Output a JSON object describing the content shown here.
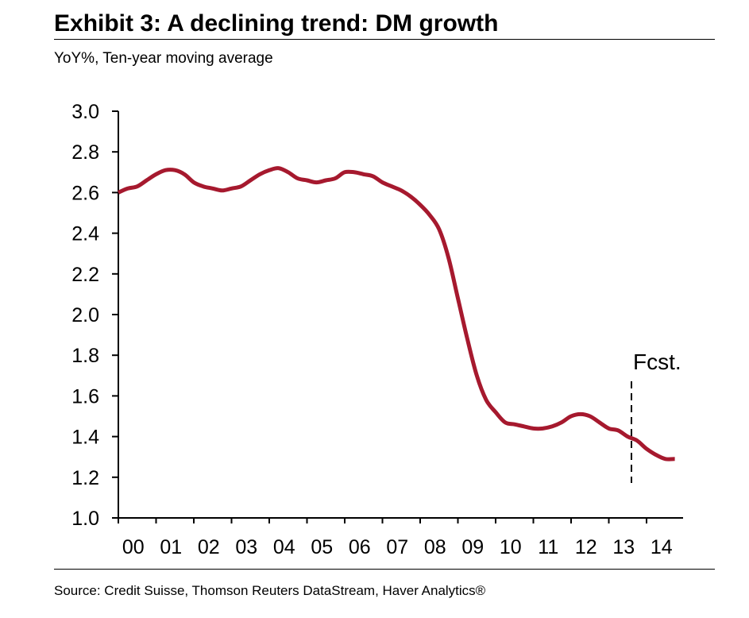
{
  "header": {
    "title": "Exhibit 3: A declining trend: DM growth",
    "subtitle": "YoY%, Ten-year moving average"
  },
  "footer": {
    "source": "Source: Credit Suisse, Thomson Reuters DataStream, Haver Analytics®"
  },
  "colors": {
    "series": "#a6192e",
    "axis": "#000000"
  },
  "chart_data": {
    "type": "line",
    "title": "Exhibit 3: A declining trend: DM growth",
    "subtitle": "YoY%, Ten-year moving average",
    "xlabel": "",
    "ylabel": "",
    "x_ticks": [
      "00",
      "01",
      "02",
      "03",
      "04",
      "05",
      "06",
      "07",
      "08",
      "09",
      "10",
      "11",
      "12",
      "13",
      "14"
    ],
    "x_range": [
      2000.0,
      2014.75
    ],
    "ylim": [
      1.0,
      3.0
    ],
    "y_ticks": [
      1.0,
      1.2,
      1.4,
      1.6,
      1.8,
      2.0,
      2.2,
      2.4,
      2.6,
      2.8,
      3.0
    ],
    "y_tick_labels": [
      "1.0",
      "1.2",
      "1.4",
      "1.6",
      "1.8",
      "2.0",
      "2.2",
      "2.4",
      "2.6",
      "2.8",
      "3.0"
    ],
    "grid": false,
    "legend": "none",
    "series": [
      {
        "x": [
          2000.0,
          2000.25,
          2000.5,
          2000.75,
          2001.0,
          2001.25,
          2001.5,
          2001.75,
          2002.0,
          2002.25,
          2002.5,
          2002.75,
          2003.0,
          2003.25,
          2003.5,
          2003.75,
          2004.0,
          2004.25,
          2004.5,
          2004.75,
          2005.0,
          2005.25,
          2005.5,
          2005.75,
          2006.0,
          2006.25,
          2006.5,
          2006.75,
          2007.0,
          2007.25,
          2007.5,
          2007.75,
          2008.0,
          2008.25,
          2008.5,
          2008.75,
          2009.0,
          2009.25,
          2009.5,
          2009.75,
          2010.0,
          2010.25,
          2010.5,
          2010.75,
          2011.0,
          2011.25,
          2011.5,
          2011.75,
          2012.0,
          2012.25,
          2012.5,
          2012.75,
          2013.0,
          2013.25,
          2013.5,
          2013.75,
          2014.0,
          2014.25,
          2014.5,
          2014.75
        ],
        "values": [
          2.6,
          2.62,
          2.63,
          2.66,
          2.69,
          2.71,
          2.71,
          2.69,
          2.65,
          2.63,
          2.62,
          2.61,
          2.62,
          2.63,
          2.66,
          2.69,
          2.71,
          2.72,
          2.7,
          2.67,
          2.66,
          2.65,
          2.66,
          2.67,
          2.7,
          2.7,
          2.69,
          2.68,
          2.65,
          2.63,
          2.61,
          2.58,
          2.54,
          2.49,
          2.42,
          2.28,
          2.08,
          1.88,
          1.7,
          1.58,
          1.52,
          1.47,
          1.46,
          1.45,
          1.44,
          1.44,
          1.45,
          1.47,
          1.5,
          1.51,
          1.5,
          1.47,
          1.44,
          1.43,
          1.4,
          1.38,
          1.34,
          1.31,
          1.29,
          1.29
        ]
      }
    ],
    "annotations": [
      {
        "text": "Fcst.",
        "x": 2013.6
      }
    ]
  }
}
